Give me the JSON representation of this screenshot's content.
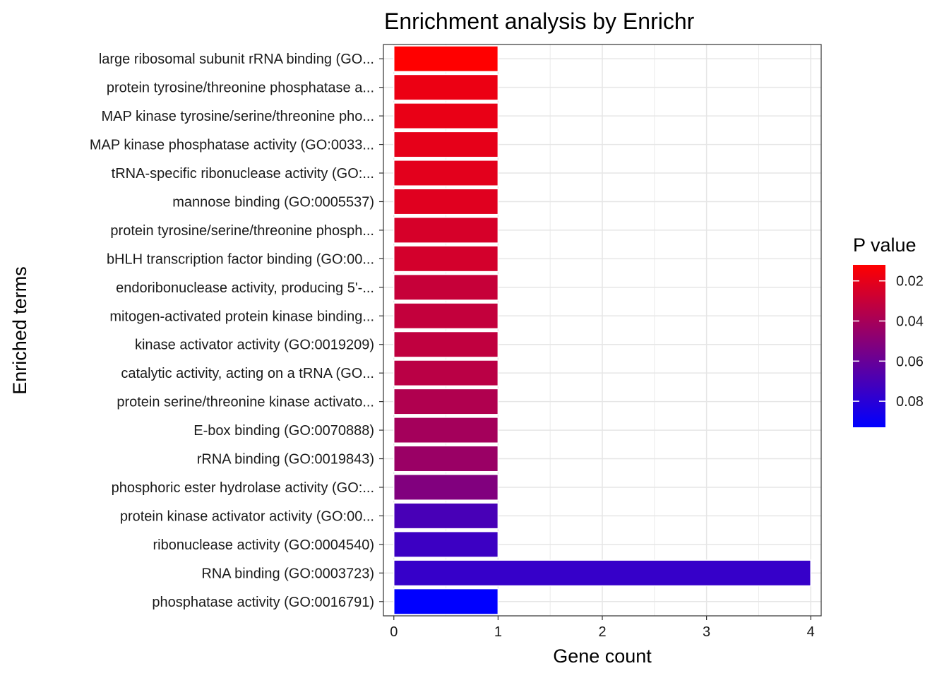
{
  "chart_data": {
    "type": "bar",
    "orientation": "horizontal",
    "title": "Enrichment analysis by Enrichr",
    "xlabel": "Gene count",
    "ylabel": "Enriched terms",
    "xlim": [
      -0.1,
      4.1
    ],
    "xticks": [
      0,
      1,
      2,
      3,
      4
    ],
    "grid": true,
    "categories": [
      "large ribosomal subunit rRNA binding (GO...",
      "protein tyrosine/threonine phosphatase a...",
      "MAP kinase tyrosine/serine/threonine pho...",
      "MAP kinase phosphatase activity (GO:0033...",
      "tRNA-specific ribonuclease activity (GO:...",
      "mannose binding (GO:0005537)",
      "protein tyrosine/serine/threonine phosph...",
      "bHLH transcription factor binding (GO:00...",
      "endoribonuclease activity, producing 5'-...",
      "mitogen-activated protein kinase binding...",
      "kinase activator activity (GO:0019209)",
      "catalytic activity, acting on a tRNA (GO...",
      "protein serine/threonine kinase activato...",
      "E-box binding (GO:0070888)",
      "rRNA binding (GO:0019843)",
      "phosphoric ester hydrolase activity (GO:...",
      "protein kinase activator activity (GO:00...",
      "ribonuclease activity (GO:0004540)",
      "RNA binding (GO:0003723)",
      "phosphatase activity (GO:0016791)"
    ],
    "values": [
      1,
      1,
      1,
      1,
      1,
      1,
      1,
      1,
      1,
      1,
      1,
      1,
      1,
      1,
      1,
      1,
      1,
      1,
      4,
      1
    ],
    "p_values": [
      0.012,
      0.018,
      0.019,
      0.02,
      0.021,
      0.022,
      0.025,
      0.026,
      0.03,
      0.031,
      0.032,
      0.034,
      0.037,
      0.041,
      0.044,
      0.052,
      0.07,
      0.074,
      0.076,
      0.093
    ],
    "color_scale": {
      "title": "P value",
      "low_color": "#FF0000",
      "high_color": "#0000FF",
      "min": 0.012,
      "max": 0.093,
      "ticks": [
        0.02,
        0.04,
        0.06,
        0.08
      ],
      "tick_labels": [
        "0.02",
        "0.04",
        "0.06",
        "0.08"
      ],
      "placement": "right"
    }
  }
}
